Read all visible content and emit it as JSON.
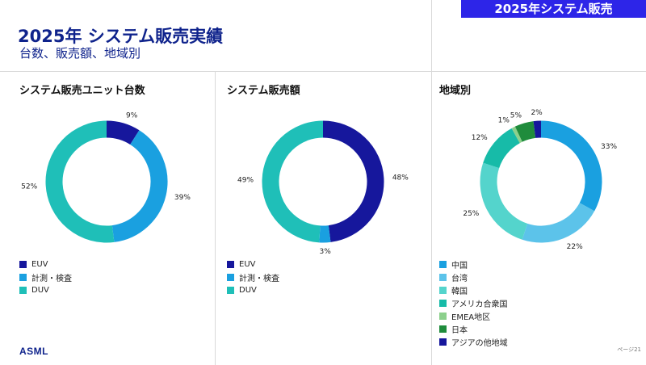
{
  "header": {
    "badge": "2025年システム販売",
    "title": "2025年 システム販売実績",
    "subtitle": "台数、販売額、地域別"
  },
  "footer": {
    "logo": "ASML",
    "page_number": "ページ21"
  },
  "colors": {
    "title": "#0f238c",
    "badge": "#2d25e8",
    "euv": "#16179c",
    "metrology": "#1aa0e0",
    "duv": "#1fbfb8"
  },
  "chart_data": [
    {
      "type": "pie",
      "title": "システム販売ユニット台数",
      "categories": [
        "EUV",
        "計測・検査",
        "DUV"
      ],
      "values": [
        9,
        39,
        52
      ],
      "labels": [
        "9%",
        "39%",
        "52%"
      ],
      "colors": [
        "#16179c",
        "#1aa0e0",
        "#1fbfb8"
      ],
      "donut": true,
      "legend": "bottom-left"
    },
    {
      "type": "pie",
      "title": "システム販売額",
      "categories": [
        "EUV",
        "計測・検査",
        "DUV"
      ],
      "values": [
        48,
        3,
        49
      ],
      "labels": [
        "48%",
        "3%",
        "49%"
      ],
      "colors": [
        "#16179c",
        "#1aa0e0",
        "#1fbfb8"
      ],
      "donut": true,
      "legend": "bottom-left"
    },
    {
      "type": "pie",
      "title": "地域別",
      "categories": [
        "中国",
        "台湾",
        "韓国",
        "アメリカ合衆国",
        "EMEA地区",
        "日本",
        "アジアの他地域"
      ],
      "values": [
        33,
        22,
        25,
        12,
        1,
        5,
        2
      ],
      "labels": [
        "33%",
        "22%",
        "25%",
        "12%",
        "1%",
        "5%",
        "2%"
      ],
      "colors": [
        "#1aa0e0",
        "#5cc3ea",
        "#54d4cc",
        "#17bba8",
        "#8cd08c",
        "#1f8c3c",
        "#16179c"
      ],
      "donut": true,
      "legend": "bottom-left"
    }
  ]
}
